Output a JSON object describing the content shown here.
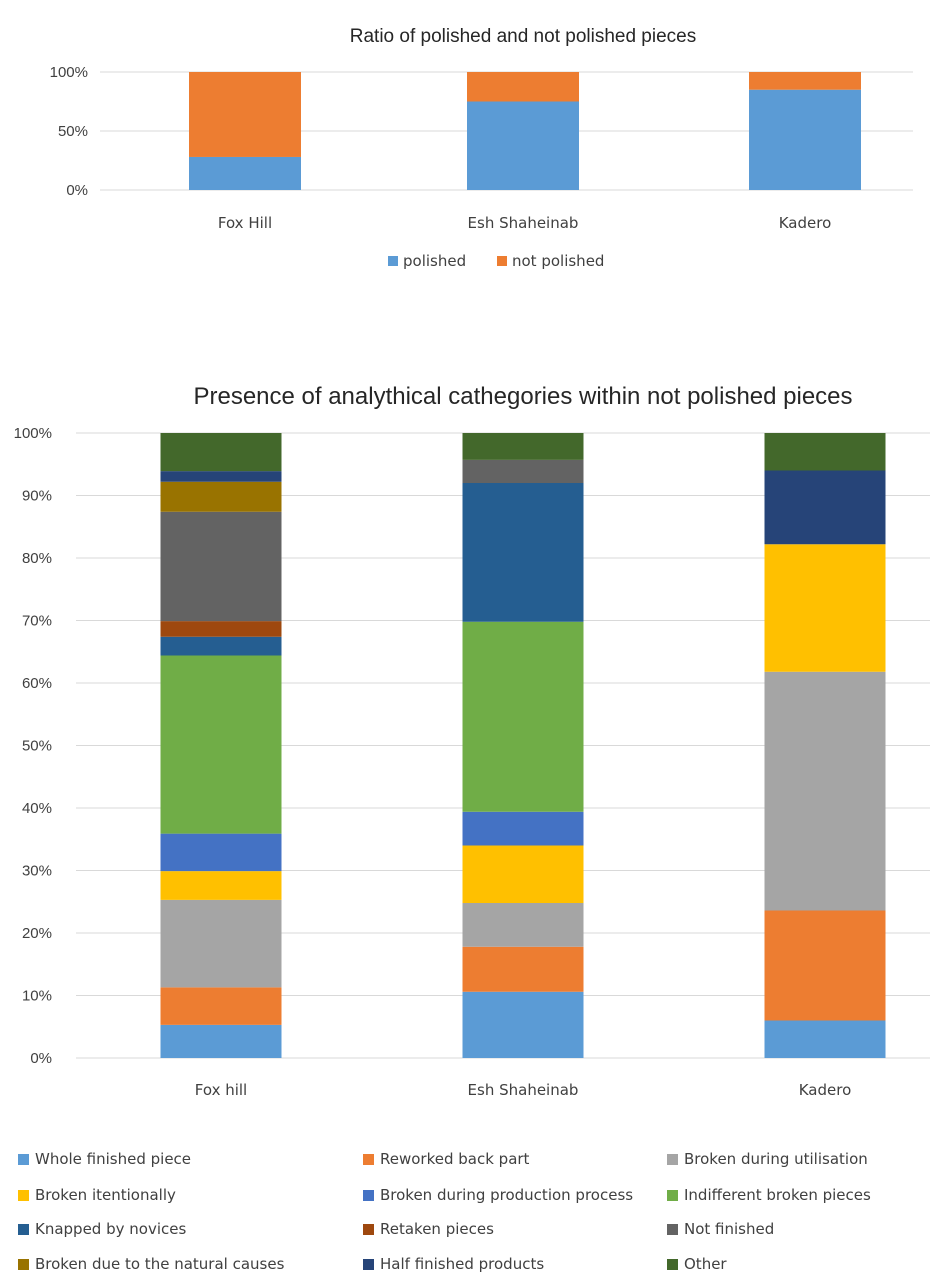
{
  "chart_data": [
    {
      "type": "bar",
      "stacked": "percent",
      "title": "Ratio of polished and not polished pieces",
      "categories": [
        "Fox Hill",
        "Esh Shaheinab",
        "Kadero"
      ],
      "y_ticks": [
        "0%",
        "50%",
        "100%"
      ],
      "ylim": [
        0,
        100
      ],
      "grid": true,
      "legend_position": "bottom",
      "series": [
        {
          "name": "polished",
          "color": "#5B9BD5",
          "values": [
            28,
            75,
            85
          ]
        },
        {
          "name": "not polished",
          "color": "#ED7D31",
          "values": [
            72,
            25,
            15
          ]
        }
      ]
    },
    {
      "type": "bar",
      "stacked": "percent",
      "title": "Presence of analythical cathegories within not polished pieces",
      "categories": [
        "Fox hill",
        "Esh Shaheinab",
        "Kadero"
      ],
      "y_ticks": [
        "0%",
        "10%",
        "20%",
        "30%",
        "40%",
        "50%",
        "60%",
        "70%",
        "80%",
        "90%",
        "100%"
      ],
      "ylim": [
        0,
        100
      ],
      "grid": true,
      "legend_position": "bottom",
      "series": [
        {
          "name": "Whole finished piece",
          "color": "#5B9BD5",
          "values": [
            5.3,
            10.6,
            6.0
          ]
        },
        {
          "name": "Reworked back part",
          "color": "#ED7D31",
          "values": [
            6.0,
            7.2,
            17.6
          ]
        },
        {
          "name": "Broken during utilisation",
          "color": "#A5A5A5",
          "values": [
            14.0,
            7.0,
            38.2
          ]
        },
        {
          "name": "Broken itentionally",
          "color": "#FFC000",
          "values": [
            4.6,
            9.2,
            20.4
          ]
        },
        {
          "name": "Broken during production process",
          "color": "#4472C4",
          "values": [
            6.0,
            5.4,
            0
          ]
        },
        {
          "name": "Indifferent broken pieces",
          "color": "#70AD47",
          "values": [
            28.5,
            30.4,
            0
          ]
        },
        {
          "name": "Knapped by novices",
          "color": "#255E91",
          "values": [
            3.0,
            22.2,
            0
          ]
        },
        {
          "name": "Retaken pieces",
          "color": "#9E480E",
          "values": [
            2.5,
            0,
            0
          ]
        },
        {
          "name": "Not finished",
          "color": "#636363",
          "values": [
            17.5,
            3.7,
            0
          ]
        },
        {
          "name": "Broken due to the natural causes",
          "color": "#997300",
          "values": [
            4.8,
            0,
            0
          ]
        },
        {
          "name": "Half finished products",
          "color": "#264478",
          "values": [
            1.7,
            0,
            11.8
          ]
        },
        {
          "name": "Other",
          "color": "#43682B",
          "values": [
            6.1,
            4.3,
            6.0
          ]
        }
      ]
    }
  ]
}
